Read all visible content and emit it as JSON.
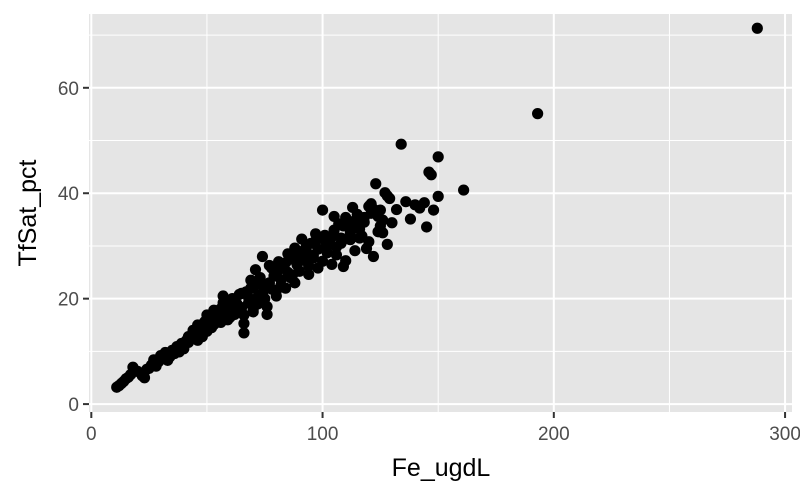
{
  "chart_data": {
    "type": "scatter",
    "title": "",
    "xlabel": "Fe_ugdL",
    "ylabel": "TfSat_pct",
    "xlim": [
      -1,
      303
    ],
    "ylim": [
      -1.5,
      74
    ],
    "x_ticks": [
      0,
      100,
      200,
      300
    ],
    "x_tick_labels": [
      "0",
      "100",
      "200",
      "300"
    ],
    "y_ticks": [
      0,
      20,
      40,
      60
    ],
    "y_tick_labels": [
      "0",
      "20",
      "40",
      "60"
    ],
    "grid": true,
    "legend": "none",
    "colors": {
      "panel": "#e5e5e5",
      "grid": "#ffffff",
      "point": "#000000",
      "tick_text": "#4d4d4d"
    },
    "points": [
      [
        11,
        3.2
      ],
      [
        12,
        3.5
      ],
      [
        13,
        3.9
      ],
      [
        14,
        4.3
      ],
      [
        15,
        4.8
      ],
      [
        16,
        5.1
      ],
      [
        17,
        5.6
      ],
      [
        18,
        7.0
      ],
      [
        20,
        6.2
      ],
      [
        22,
        5.4
      ],
      [
        23,
        5.0
      ],
      [
        24,
        6.6
      ],
      [
        25,
        6.8
      ],
      [
        26,
        7.4
      ],
      [
        27,
        8.4
      ],
      [
        28,
        7.2
      ],
      [
        29,
        8.0
      ],
      [
        30,
        9.2
      ],
      [
        31,
        8.6
      ],
      [
        32,
        9.8
      ],
      [
        33,
        8.3
      ],
      [
        34,
        9.0
      ],
      [
        35,
        10.2
      ],
      [
        36,
        9.6
      ],
      [
        37,
        10.9
      ],
      [
        38,
        9.9
      ],
      [
        39,
        11.5
      ],
      [
        40,
        11.0
      ],
      [
        41,
        12.0
      ],
      [
        42,
        11.7
      ],
      [
        43,
        12.4
      ],
      [
        44,
        14.0
      ],
      [
        45,
        13.2
      ],
      [
        46,
        15.0
      ],
      [
        47,
        13.8
      ],
      [
        48,
        12.8
      ],
      [
        49,
        15.6
      ],
      [
        50,
        16.9
      ],
      [
        51,
        14.6
      ],
      [
        52,
        16.2
      ],
      [
        53,
        15.1
      ],
      [
        54,
        17.3
      ],
      [
        55,
        16.8
      ],
      [
        56,
        18.1
      ],
      [
        57,
        20.5
      ],
      [
        58,
        17.5
      ],
      [
        59,
        16.0
      ],
      [
        60,
        18.8
      ],
      [
        61,
        19.5
      ],
      [
        62,
        17.0
      ],
      [
        63,
        19.0
      ],
      [
        64,
        20.8
      ],
      [
        65,
        18.3
      ],
      [
        66,
        13.5
      ],
      [
        67,
        21.3
      ],
      [
        68,
        19.2
      ],
      [
        69,
        22.0
      ],
      [
        70,
        18.0
      ],
      [
        71,
        25.5
      ],
      [
        72,
        20.3
      ],
      [
        73,
        24.0
      ],
      [
        74,
        28.0
      ],
      [
        75,
        22.5
      ],
      [
        76,
        17.0
      ],
      [
        77,
        23.0
      ],
      [
        78,
        25.8
      ],
      [
        79,
        24.3
      ],
      [
        80,
        21.5
      ],
      [
        81,
        27.0
      ],
      [
        82,
        23.6
      ],
      [
        83,
        26.0
      ],
      [
        84,
        22.0
      ],
      [
        85,
        25.0
      ],
      [
        86,
        27.5
      ],
      [
        87,
        24.5
      ],
      [
        88,
        29.6
      ],
      [
        89,
        26.4
      ],
      [
        90,
        28.0
      ],
      [
        91,
        31.3
      ],
      [
        92,
        27.3
      ],
      [
        93,
        29.0
      ],
      [
        94,
        24.6
      ],
      [
        95,
        30.5
      ],
      [
        96,
        28.2
      ],
      [
        97,
        31.0
      ],
      [
        98,
        29.4
      ],
      [
        100,
        36.8
      ],
      [
        101,
        32.0
      ],
      [
        102,
        28.7
      ],
      [
        103,
        30.6
      ],
      [
        104,
        31.7
      ],
      [
        105,
        33.0
      ],
      [
        106,
        29.8
      ],
      [
        107,
        34.2
      ],
      [
        108,
        31.5
      ],
      [
        109,
        26.1
      ],
      [
        110,
        35.4
      ],
      [
        111,
        33.6
      ],
      [
        112,
        32.4
      ],
      [
        113,
        37.3
      ],
      [
        114,
        34.8
      ],
      [
        115,
        36.0
      ],
      [
        116,
        33.2
      ],
      [
        117,
        31.9
      ],
      [
        118,
        34.5
      ],
      [
        119,
        29.5
      ],
      [
        120,
        37.5
      ],
      [
        121,
        36.2
      ],
      [
        122,
        28.0
      ],
      [
        123,
        41.8
      ],
      [
        124,
        35.6
      ],
      [
        125,
        36.8
      ],
      [
        126,
        32.5
      ],
      [
        127,
        40.1
      ],
      [
        128,
        39.5
      ],
      [
        130,
        34.4
      ],
      [
        132,
        36.9
      ],
      [
        134,
        49.3
      ],
      [
        136,
        38.4
      ],
      [
        138,
        35.1
      ],
      [
        140,
        37.8
      ],
      [
        142,
        37.2
      ],
      [
        144,
        38.2
      ],
      [
        145,
        33.6
      ],
      [
        146,
        44.0
      ],
      [
        147,
        43.5
      ],
      [
        148,
        36.8
      ],
      [
        150,
        46.9
      ],
      [
        150,
        39.4
      ],
      [
        161,
        40.6
      ],
      [
        193,
        55.1
      ],
      [
        288,
        71.3
      ],
      [
        52,
        14.5
      ],
      [
        54,
        16.0
      ],
      [
        56,
        15.5
      ],
      [
        58,
        18.5
      ],
      [
        60,
        16.5
      ],
      [
        62,
        19.8
      ],
      [
        64,
        17.8
      ],
      [
        66,
        15.3
      ],
      [
        68,
        20.2
      ],
      [
        70,
        17.5
      ],
      [
        72,
        19.0
      ],
      [
        74,
        21.0
      ],
      [
        76,
        18.5
      ],
      [
        78,
        21.8
      ],
      [
        80,
        24.8
      ],
      [
        82,
        22.5
      ],
      [
        84,
        26.8
      ],
      [
        86,
        24.0
      ],
      [
        88,
        23.0
      ],
      [
        90,
        25.2
      ],
      [
        92,
        29.2
      ],
      [
        94,
        26.2
      ],
      [
        96,
        27.7
      ],
      [
        98,
        25.8
      ],
      [
        100,
        27.1
      ],
      [
        102,
        30.0
      ],
      [
        104,
        26.5
      ],
      [
        106,
        28.3
      ],
      [
        108,
        30.5
      ],
      [
        110,
        27.2
      ],
      [
        112,
        31.2
      ],
      [
        114,
        29.1
      ],
      [
        116,
        31.5
      ],
      [
        118,
        35.4
      ],
      [
        120,
        30.8
      ],
      [
        122,
        37.0
      ],
      [
        124,
        32.7
      ],
      [
        126,
        34.9
      ],
      [
        128,
        30.3
      ],
      [
        40,
        10.5
      ],
      [
        42,
        12.8
      ],
      [
        44,
        13.5
      ],
      [
        46,
        12.1
      ],
      [
        48,
        14.5
      ],
      [
        50,
        13.8
      ],
      [
        53,
        17.8
      ],
      [
        57,
        19.2
      ],
      [
        61,
        20.0
      ],
      [
        65,
        21.0
      ],
      [
        69,
        23.5
      ],
      [
        73,
        22.8
      ],
      [
        77,
        26.3
      ],
      [
        81,
        25.5
      ],
      [
        85,
        28.5
      ],
      [
        89,
        28.8
      ],
      [
        93,
        30.0
      ],
      [
        97,
        32.3
      ],
      [
        101,
        31.0
      ],
      [
        105,
        35.6
      ],
      [
        109,
        33.8
      ],
      [
        113,
        34.0
      ],
      [
        117,
        35.0
      ],
      [
        121,
        38.0
      ],
      [
        125,
        33.8
      ],
      [
        129,
        39.0
      ],
      [
        70,
        22.0
      ],
      [
        75,
        20.0
      ],
      [
        80,
        20.5
      ],
      [
        66,
        16.9
      ]
    ]
  }
}
